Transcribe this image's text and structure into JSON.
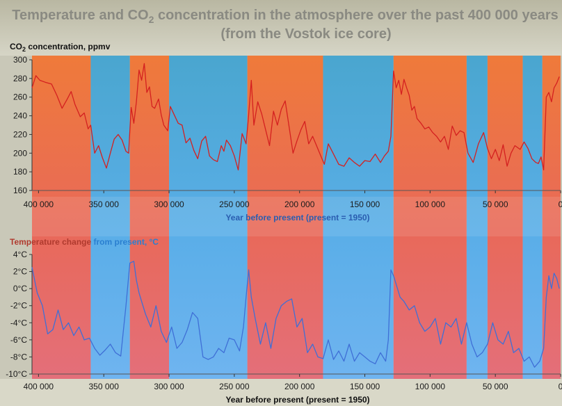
{
  "title_line1": "Temperature and CO",
  "title_sub": "2",
  "title_line1_rest": " concentration in the atmosphere over the past 400 000 years",
  "title_line2": "(from the Vostok ice core)",
  "colors": {
    "warm": "#e8754f",
    "cold": "#5aaee0",
    "co2_line": "#d42020",
    "temp_line": "#3f6fd6",
    "co2_xlabel": "#2a5db0",
    "temp_ylabel_warm": "#c0392b",
    "temp_ylabel_cold": "#2a7fd0"
  },
  "chart_data": [
    {
      "type": "line",
      "name": "co2",
      "ylabel": "CO2 concentration, ppmv",
      "ylabel_main": "CO",
      "ylabel_sub": "2",
      "ylabel_rest": " concentration, ppmv",
      "xlabel": "Year before present (present = 1950)",
      "xlim": [
        405000,
        0
      ],
      "ylim": [
        160,
        300
      ],
      "y_ticks": [
        "160",
        "180",
        "200",
        "220",
        "240",
        "260",
        "280",
        "300"
      ],
      "x_ticks": [
        "400 000",
        "350 000",
        "300 000",
        "250 000",
        "200 000",
        "150 000",
        "100 000",
        "50 000",
        "0"
      ],
      "x": [
        405000,
        402000,
        399000,
        395000,
        390000,
        386000,
        382000,
        378000,
        375000,
        372000,
        368000,
        365000,
        362000,
        360000,
        357000,
        354000,
        351000,
        348000,
        345000,
        342000,
        339000,
        336000,
        333000,
        331000,
        329000,
        327000,
        325000,
        323000,
        321000,
        319000,
        317000,
        315000,
        313000,
        311000,
        308000,
        306000,
        304000,
        301000,
        299000,
        296000,
        293000,
        290000,
        287000,
        284000,
        281000,
        278000,
        275000,
        272000,
        269000,
        266000,
        263000,
        260000,
        258000,
        256000,
        253000,
        250000,
        247000,
        244000,
        241000,
        239000,
        237000,
        235000,
        232000,
        229000,
        226000,
        223000,
        220000,
        217000,
        214000,
        211000,
        208000,
        205000,
        202000,
        199000,
        196000,
        193000,
        190000,
        187000,
        184000,
        181000,
        178000,
        174000,
        170000,
        166000,
        162000,
        158000,
        154000,
        150000,
        146000,
        142000,
        138000,
        135000,
        132000,
        130000,
        128000,
        126000,
        124000,
        122000,
        120000,
        118000,
        116000,
        114000,
        112000,
        110000,
        107000,
        104000,
        101000,
        98000,
        95000,
        92000,
        89000,
        86000,
        83000,
        80000,
        77000,
        74000,
        71000,
        67000,
        63000,
        59000,
        56000,
        53000,
        50000,
        47000,
        44000,
        41000,
        38000,
        35000,
        31000,
        28000,
        25000,
        22000,
        19000,
        17000,
        15000,
        13000,
        11000,
        9000,
        7000,
        5000,
        3000,
        1000
      ],
      "values": [
        270,
        283,
        278,
        276,
        274,
        262,
        248,
        258,
        266,
        252,
        239,
        243,
        226,
        230,
        200,
        208,
        195,
        184,
        200,
        215,
        220,
        214,
        202,
        200,
        249,
        232,
        255,
        289,
        278,
        296,
        265,
        271,
        250,
        248,
        258,
        241,
        230,
        224,
        250,
        241,
        232,
        230,
        211,
        216,
        203,
        194,
        213,
        218,
        197,
        193,
        191,
        208,
        202,
        214,
        208,
        197,
        182,
        221,
        210,
        241,
        278,
        230,
        255,
        242,
        225,
        208,
        245,
        230,
        247,
        256,
        228,
        200,
        213,
        225,
        234,
        210,
        218,
        208,
        198,
        188,
        210,
        199,
        188,
        186,
        195,
        190,
        186,
        192,
        191,
        199,
        190,
        197,
        202,
        218,
        288,
        270,
        278,
        263,
        279,
        270,
        262,
        246,
        250,
        237,
        232,
        226,
        228,
        222,
        218,
        212,
        218,
        204,
        229,
        219,
        224,
        222,
        200,
        190,
        210,
        222,
        205,
        194,
        204,
        192,
        209,
        186,
        200,
        208,
        204,
        212,
        205,
        194,
        190,
        189,
        196,
        182,
        260,
        265,
        255,
        270,
        275,
        282
      ]
    },
    {
      "type": "line",
      "name": "temperature",
      "ylabel": "Temperature change from present, °C",
      "ylabel_part1": "Temperature change",
      "ylabel_part2": " from present, °C",
      "xlabel": "Year before present (present = 1950)",
      "xlim": [
        405000,
        0
      ],
      "ylim": [
        -10,
        4
      ],
      "y_ticks": [
        "-10°C",
        "-8°C",
        "-6°C",
        "-4°C",
        "-2°C",
        "0°C",
        "2°C",
        "4°C"
      ],
      "x_ticks": [
        "400 000",
        "350 000",
        "300 000",
        "250 000",
        "200 000",
        "150 000",
        "100 000",
        "50 000",
        "0"
      ],
      "x": [
        405000,
        401000,
        397000,
        393000,
        389000,
        385000,
        381000,
        377000,
        373000,
        369000,
        365000,
        361000,
        357000,
        353000,
        349000,
        345000,
        341000,
        337000,
        333000,
        330000,
        327000,
        325000,
        323000,
        321000,
        318000,
        314000,
        310000,
        306000,
        302000,
        298000,
        294000,
        290000,
        286000,
        282000,
        278000,
        274000,
        270000,
        266000,
        262000,
        258000,
        254000,
        250000,
        246000,
        243000,
        241000,
        239000,
        237000,
        234000,
        230000,
        226000,
        222000,
        218000,
        214000,
        210000,
        206000,
        202000,
        198000,
        194000,
        190000,
        186000,
        182000,
        178000,
        174000,
        170000,
        166000,
        162000,
        158000,
        154000,
        150000,
        146000,
        142000,
        138000,
        134000,
        132000,
        130000,
        128000,
        126000,
        123000,
        120000,
        116000,
        112000,
        108000,
        104000,
        100000,
        96000,
        92000,
        88000,
        84000,
        80000,
        76000,
        72000,
        68000,
        64000,
        60000,
        56000,
        52000,
        48000,
        44000,
        40000,
        36000,
        32000,
        28000,
        24000,
        20000,
        16000,
        13000,
        11000,
        9000,
        7000,
        5000,
        3000,
        1000
      ],
      "values": [
        2.5,
        -0.5,
        -2,
        -5.3,
        -4.8,
        -2.5,
        -4.8,
        -4.0,
        -5.5,
        -4.5,
        -6.0,
        -5.8,
        -7.0,
        -7.8,
        -7.2,
        -6.5,
        -7.5,
        -7.9,
        -2.0,
        3.0,
        3.2,
        1.0,
        -0.5,
        -1.5,
        -3.0,
        -4.5,
        -2.0,
        -5.0,
        -6.3,
        -4.5,
        -7.0,
        -6.3,
        -4.8,
        -2.8,
        -3.5,
        -8.0,
        -8.3,
        -8.0,
        -7.0,
        -7.5,
        -5.8,
        -6.0,
        -7.3,
        -4.5,
        -1.0,
        2.2,
        -1.0,
        -3.5,
        -6.5,
        -4.0,
        -7.0,
        -3.5,
        -2.0,
        -1.5,
        -1.2,
        -4.5,
        -3.5,
        -7.5,
        -6.5,
        -8.0,
        -8.2,
        -6.0,
        -8.3,
        -7.3,
        -8.5,
        -6.5,
        -8.5,
        -7.5,
        -8.0,
        -8.5,
        -8.8,
        -7.5,
        -8.5,
        -6.0,
        2.2,
        1.5,
        0.5,
        -1.0,
        -1.5,
        -2.5,
        -2.0,
        -4.0,
        -5.0,
        -4.5,
        -3.5,
        -6.5,
        -4.0,
        -4.5,
        -3.5,
        -6.5,
        -4.0,
        -6.5,
        -8.0,
        -7.5,
        -6.5,
        -4.0,
        -6.0,
        -6.5,
        -5.0,
        -7.5,
        -7.0,
        -8.5,
        -8.0,
        -9.2,
        -8.5,
        -7.0,
        -1.0,
        1.5,
        0.0,
        1.8,
        1.2,
        0.0
      ]
    }
  ]
}
